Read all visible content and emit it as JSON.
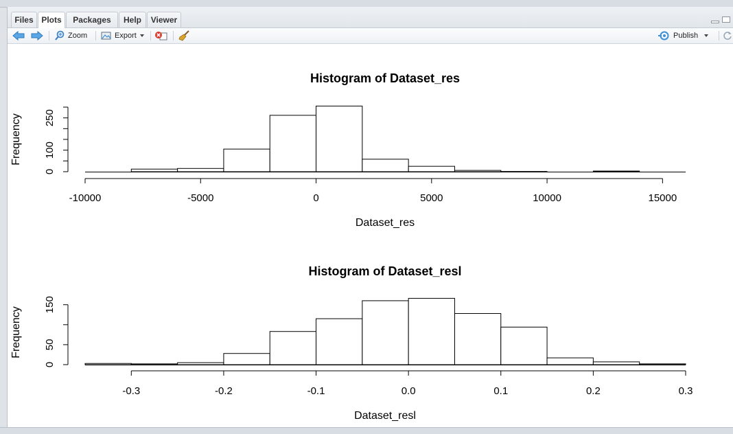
{
  "tabs": [
    {
      "label": "Files"
    },
    {
      "label": "Plots",
      "active": true
    },
    {
      "label": "Packages"
    },
    {
      "label": "Help"
    },
    {
      "label": "Viewer"
    }
  ],
  "toolbar": {
    "zoom_label": "Zoom",
    "export_label": "Export",
    "publish_label": "Publish"
  },
  "colors": {
    "accent_blue": "#3d8fd6",
    "remove_red": "#d83a2e",
    "brush_yellow": "#d9a52b"
  },
  "chart_data": [
    {
      "type": "bar",
      "title": "Histogram of Dataset_res",
      "xlabel": "Dataset_res",
      "ylabel": "Frequency",
      "xlim": [
        -10000,
        16000
      ],
      "ylim": [
        0,
        300
      ],
      "x_ticks": [
        "-10000",
        "-5000",
        "0",
        "5000",
        "10000",
        "15000"
      ],
      "y_ticks": [
        "0",
        "100",
        "250"
      ],
      "bins": [
        {
          "from": -10000,
          "to": -8000,
          "count": 0
        },
        {
          "from": -8000,
          "to": -6000,
          "count": 12
        },
        {
          "from": -6000,
          "to": -4000,
          "count": 15
        },
        {
          "from": -4000,
          "to": -2000,
          "count": 105
        },
        {
          "from": -2000,
          "to": 0,
          "count": 262
        },
        {
          "from": 0,
          "to": 2000,
          "count": 305
        },
        {
          "from": 2000,
          "to": 4000,
          "count": 58
        },
        {
          "from": 4000,
          "to": 6000,
          "count": 25
        },
        {
          "from": 6000,
          "to": 8000,
          "count": 6
        },
        {
          "from": 8000,
          "to": 10000,
          "count": 1
        },
        {
          "from": 10000,
          "to": 12000,
          "count": 0
        },
        {
          "from": 12000,
          "to": 14000,
          "count": 3
        },
        {
          "from": 14000,
          "to": 16000,
          "count": 0
        }
      ]
    },
    {
      "type": "bar",
      "title": "Histogram of Dataset_resl",
      "xlabel": "Dataset_resl",
      "ylabel": "Frequency",
      "xlim": [
        -0.35,
        0.3
      ],
      "ylim": [
        0,
        165
      ],
      "x_ticks": [
        "-0.3",
        "-0.2",
        "-0.1",
        "0.0",
        "0.1",
        "0.2",
        "0.3"
      ],
      "y_ticks": [
        "0",
        "50",
        "150"
      ],
      "bins": [
        {
          "from": -0.35,
          "to": -0.3,
          "count": 3
        },
        {
          "from": -0.3,
          "to": -0.25,
          "count": 2
        },
        {
          "from": -0.25,
          "to": -0.2,
          "count": 5
        },
        {
          "from": -0.2,
          "to": -0.15,
          "count": 28
        },
        {
          "from": -0.15,
          "to": -0.1,
          "count": 83
        },
        {
          "from": -0.1,
          "to": -0.05,
          "count": 115
        },
        {
          "from": -0.05,
          "to": 0.0,
          "count": 160
        },
        {
          "from": 0.0,
          "to": 0.05,
          "count": 166
        },
        {
          "from": 0.05,
          "to": 0.1,
          "count": 128
        },
        {
          "from": 0.1,
          "to": 0.15,
          "count": 94
        },
        {
          "from": 0.15,
          "to": 0.2,
          "count": 17
        },
        {
          "from": 0.2,
          "to": 0.25,
          "count": 7
        },
        {
          "from": 0.25,
          "to": 0.3,
          "count": 2
        }
      ]
    }
  ]
}
